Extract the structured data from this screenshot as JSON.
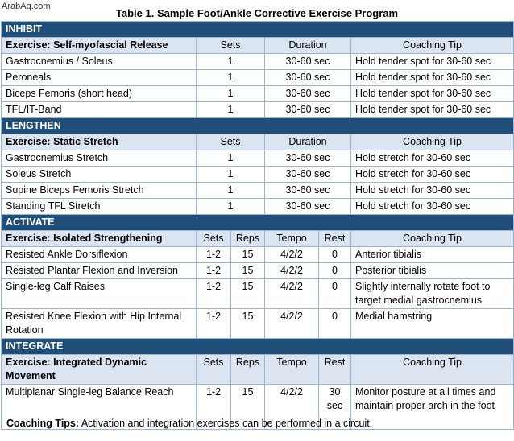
{
  "watermark": "ArabAq.com",
  "title": "Table 1. Sample Foot/Ankle Corrective Exercise Program",
  "inhibit": {
    "section": "INHIBIT",
    "header": {
      "exercise": "Exercise: Self-myofascial Release",
      "sets": "Sets",
      "duration": "Duration",
      "tip": "Coaching Tip"
    },
    "rows": [
      {
        "exercise": "Gastrocnemius / Soleus",
        "sets": "1",
        "duration": "30-60 sec",
        "tip": "Hold tender spot for 30-60 sec"
      },
      {
        "exercise": "Peroneals",
        "sets": "1",
        "duration": "30-60 sec",
        "tip": "Hold tender spot for 30-60 sec"
      },
      {
        "exercise": "Biceps Femoris (short head)",
        "sets": "1",
        "duration": "30-60 sec",
        "tip": "Hold tender spot for 30-60 sec"
      },
      {
        "exercise": "TFL/IT-Band",
        "sets": "1",
        "duration": "30-60 sec",
        "tip": "Hold tender spot for 30-60 sec"
      }
    ]
  },
  "lengthen": {
    "section": "LENGTHEN",
    "header": {
      "exercise": "Exercise: Static Stretch",
      "sets": "Sets",
      "duration": "Duration",
      "tip": "Coaching Tip"
    },
    "rows": [
      {
        "exercise": "Gastrocnemius Stretch",
        "sets": "1",
        "duration": "30-60 sec",
        "tip": "Hold stretch for 30-60 sec"
      },
      {
        "exercise": "Soleus Stretch",
        "sets": "1",
        "duration": "30-60 sec",
        "tip": "Hold stretch for 30-60 sec"
      },
      {
        "exercise": "Supine Biceps Femoris Stretch",
        "sets": "1",
        "duration": "30-60 sec",
        "tip": "Hold stretch for 30-60 sec"
      },
      {
        "exercise": "Standing TFL Stretch",
        "sets": "1",
        "duration": "30-60 sec",
        "tip": "Hold stretch for 30-60 sec"
      }
    ]
  },
  "activate": {
    "section": "ACTIVATE",
    "header": {
      "exercise": "Exercise: Isolated Strengthening",
      "sets": "Sets",
      "reps": "Reps",
      "tempo": "Tempo",
      "rest": "Rest",
      "tip": "Coaching Tip"
    },
    "rows": [
      {
        "exercise": "Resisted Ankle Dorsiflexion",
        "sets": "1-2",
        "reps": "15",
        "tempo": "4/2/2",
        "rest": "0",
        "tip": "Anterior tibialis"
      },
      {
        "exercise": "Resisted Plantar Flexion and Inversion",
        "sets": "1-2",
        "reps": "15",
        "tempo": "4/2/2",
        "rest": "0",
        "tip": "Posterior tibialis"
      },
      {
        "exercise": "Single-leg Calf Raises",
        "sets": "1-2",
        "reps": "15",
        "tempo": "4/2/2",
        "rest": "0",
        "tip": "Slightly internally rotate foot to target medial gastrocnemius"
      },
      {
        "exercise": "Resisted Knee Flexion with Hip Internal Rotation",
        "sets": "1-2",
        "reps": "15",
        "tempo": "4/2/2",
        "rest": "0",
        "tip": "Medial hamstring"
      }
    ]
  },
  "integrate": {
    "section": "INTEGRATE",
    "header": {
      "exercise": "Exercise: Integrated Dynamic Movement",
      "sets": "Sets",
      "reps": "Reps",
      "tempo": "Tempo",
      "rest": "Rest",
      "tip": "Coaching Tip"
    },
    "rows": [
      {
        "exercise": "Multiplanar Single-leg Balance Reach",
        "sets": "1-2",
        "reps": "15",
        "tempo": "4/2/2",
        "rest": "30 sec",
        "tip": "Monitor posture at all times and maintain proper arch in the foot"
      }
    ]
  },
  "footer": {
    "label": "Coaching Tips:",
    "text": " Activation and integration exercises can be performed in a circuit."
  }
}
